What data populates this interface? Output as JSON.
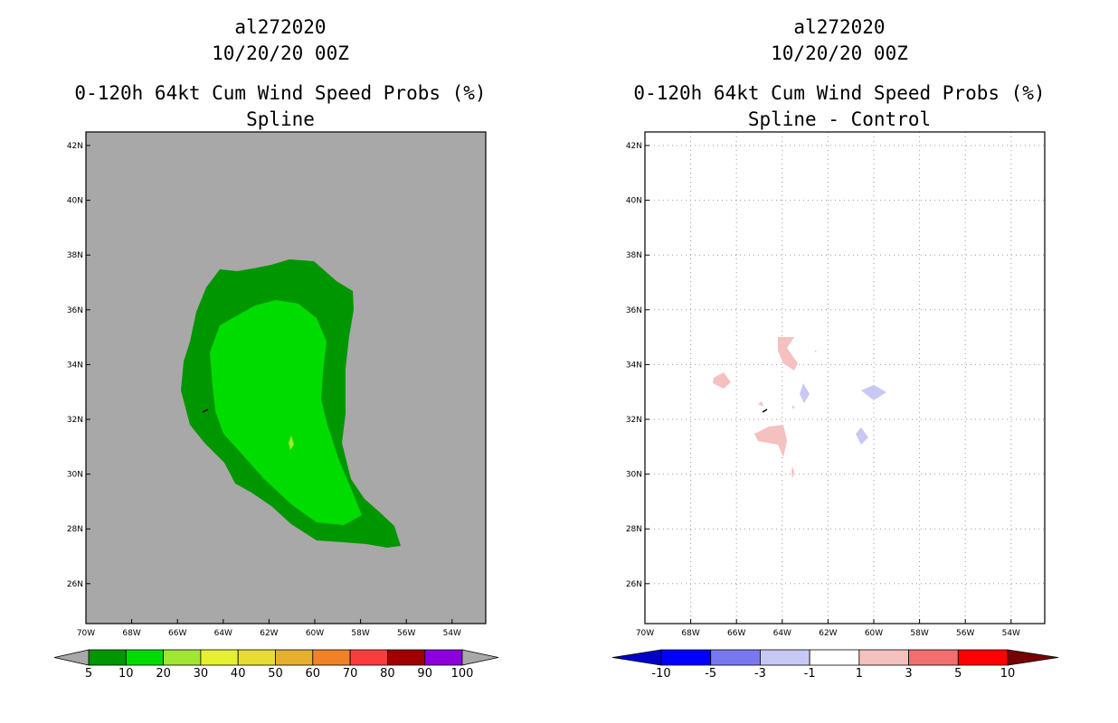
{
  "left_panel": {
    "storm_id": "al272020",
    "date": "10/20/20 00Z",
    "product": "0-120h 64kt Cum Wind Speed Probs (%)",
    "method": "Spline"
  },
  "right_panel": {
    "storm_id": "al272020",
    "date": "10/20/20 00Z",
    "product": "0-120h 64kt Cum Wind Speed Probs (%)",
    "method": "Spline - Control"
  },
  "chart_data": [
    {
      "type": "heatmap",
      "title": "0-120h 64kt Cum Wind Speed Probs (%) - Spline",
      "x_ticks": [
        "70W",
        "68W",
        "66W",
        "64W",
        "62W",
        "60W",
        "58W",
        "56W",
        "54W"
      ],
      "y_ticks": [
        "42N",
        "40N",
        "38N",
        "36N",
        "34N",
        "32N",
        "30N",
        "28N",
        "26N"
      ],
      "xlim": [
        -70,
        -52.5
      ],
      "ylim": [
        24.5,
        42.5
      ],
      "background_color": "#a8a8a8",
      "colorbar": {
        "labels": [
          "5",
          "10",
          "20",
          "30",
          "40",
          "50",
          "60",
          "70",
          "80",
          "90",
          "100"
        ],
        "colors": [
          "#009600",
          "#00dc00",
          "#a0e632",
          "#e6f032",
          "#e6dc32",
          "#e6af2d",
          "#f08228",
          "#fa3c3c",
          "#a00000",
          "#8c00dc"
        ]
      },
      "regions": [
        {
          "range": "5-10%",
          "color": "#009600"
        },
        {
          "range": "10-20%",
          "color": "#00dc00"
        },
        {
          "range": "20-30%",
          "color": "#a0e632"
        }
      ]
    },
    {
      "type": "heatmap",
      "title": "0-120h 64kt Cum Wind Speed Probs (%) - Spline - Control",
      "x_ticks": [
        "70W",
        "68W",
        "66W",
        "64W",
        "62W",
        "60W",
        "58W",
        "56W",
        "54W"
      ],
      "y_ticks": [
        "42N",
        "40N",
        "38N",
        "36N",
        "34N",
        "32N",
        "30N",
        "28N",
        "26N"
      ],
      "xlim": [
        -70,
        -52.5
      ],
      "ylim": [
        24.5,
        42.5
      ],
      "grid": true,
      "colorbar": {
        "labels": [
          "-10",
          "-5",
          "-3",
          "-1",
          "1",
          "3",
          "5",
          "10"
        ],
        "colors": [
          "#0000c8",
          "#0000ff",
          "#7878f0",
          "#c8c8f5",
          "#ffffff",
          "#f5c0c0",
          "#f07070",
          "#ff0000",
          "#780000"
        ]
      },
      "regions": [
        {
          "range": "1-3",
          "color": "#f5c0c0"
        },
        {
          "range": "-3--1",
          "color": "#c8c8f5"
        }
      ]
    }
  ]
}
